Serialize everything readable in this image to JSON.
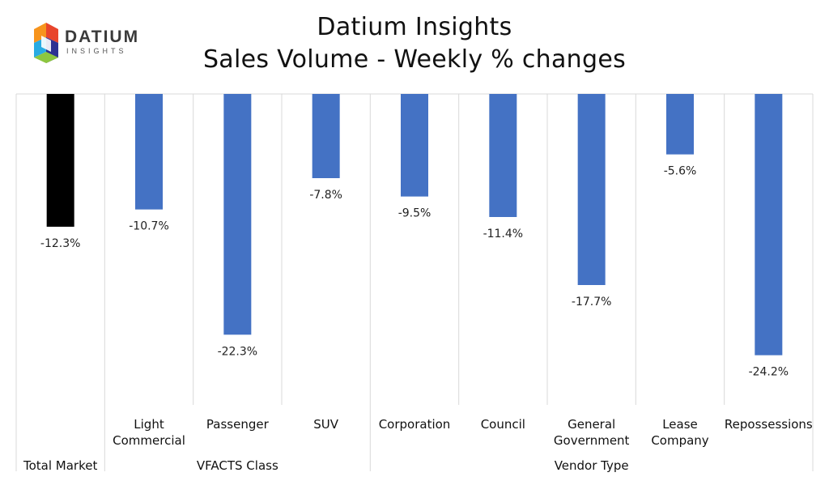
{
  "logo": {
    "name": "DATIUM",
    "tagline": "INSIGHTS"
  },
  "title": [
    "Datium Insights",
    "Sales Volume - Weekly % changes"
  ],
  "chart_data": {
    "type": "bar",
    "categories": [
      [
        "",
        ""
      ],
      [
        "Light",
        "Commercial"
      ],
      [
        "Passenger",
        ""
      ],
      [
        "SUV",
        ""
      ],
      [
        "Corporation",
        ""
      ],
      [
        "Council",
        ""
      ],
      [
        "General",
        "Government"
      ],
      [
        "Lease",
        "Company"
      ],
      [
        "Repossessions",
        ""
      ]
    ],
    "values": [
      -12.3,
      -10.7,
      -22.3,
      -7.8,
      -9.5,
      -11.4,
      -17.7,
      -5.6,
      -24.2
    ],
    "value_labels": [
      "-12.3%",
      "-10.7%",
      "-22.3%",
      "-7.8%",
      "-9.5%",
      "-11.4%",
      "-17.7%",
      "-5.6%",
      "-24.2%"
    ],
    "bar_colors": [
      "#000000",
      "#4472C4",
      "#4472C4",
      "#4472C4",
      "#4472C4",
      "#4472C4",
      "#4472C4",
      "#4472C4",
      "#4472C4"
    ],
    "groups": [
      {
        "label": "Total Market",
        "start": 0,
        "end": 0
      },
      {
        "label": "VFACTS Class",
        "start": 1,
        "end": 3
      },
      {
        "label": "Vendor Type",
        "start": 4,
        "end": 8
      }
    ],
    "ylim": [
      -30,
      0
    ],
    "grid": true
  }
}
